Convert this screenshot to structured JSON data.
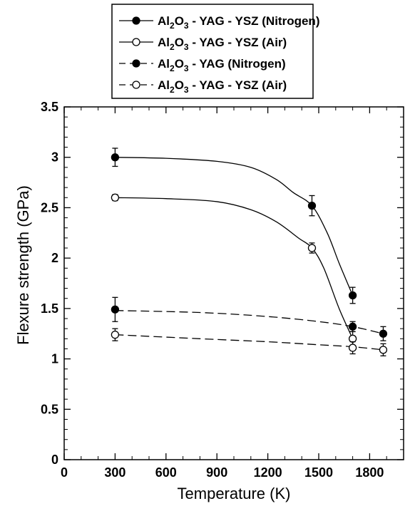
{
  "chart_data": {
    "type": "line",
    "xlabel": "Temperature (K)",
    "ylabel": "Flexure strength (GPa)",
    "xlim": [
      0,
      2000
    ],
    "ylim": [
      0,
      3.5
    ],
    "xticks": [
      "0",
      "300",
      "600",
      "900",
      "1200",
      "1500",
      "1800"
    ],
    "yticks": [
      "0",
      "0.5",
      "1",
      "1.5",
      "2",
      "2.5",
      "3",
      "3.5"
    ],
    "grid": false,
    "legend_position": "top-center",
    "series": [
      {
        "id": "s1",
        "name_parts": [
          "Al",
          "2",
          "O",
          "3",
          " - YAG - YSZ (Nitrogen)"
        ],
        "marker": "filled-circle",
        "line_style": "solid",
        "points": [
          {
            "x": 300,
            "y": 3.0,
            "err": 0.09
          },
          {
            "x": 1460,
            "y": 2.52,
            "err": 0.1
          },
          {
            "x": 1700,
            "y": 1.63,
            "err": 0.08
          }
        ],
        "curve": [
          [
            300,
            3.0
          ],
          [
            600,
            2.99
          ],
          [
            900,
            2.96
          ],
          [
            1100,
            2.9
          ],
          [
            1250,
            2.78
          ],
          [
            1350,
            2.65
          ],
          [
            1460,
            2.52
          ],
          [
            1550,
            2.25
          ],
          [
            1620,
            1.95
          ],
          [
            1700,
            1.63
          ]
        ]
      },
      {
        "id": "s2",
        "name_parts": [
          "Al",
          "2",
          "O",
          "3",
          " - YAG - YSZ (Air)"
        ],
        "marker": "open-circle",
        "line_style": "solid",
        "points": [
          {
            "x": 300,
            "y": 2.6,
            "err": 0.03
          },
          {
            "x": 1460,
            "y": 2.1,
            "err": 0.05
          },
          {
            "x": 1700,
            "y": 1.2,
            "err": 0.07
          }
        ],
        "curve": [
          [
            300,
            2.6
          ],
          [
            600,
            2.59
          ],
          [
            900,
            2.56
          ],
          [
            1100,
            2.48
          ],
          [
            1250,
            2.36
          ],
          [
            1380,
            2.2
          ],
          [
            1460,
            2.1
          ],
          [
            1530,
            1.9
          ],
          [
            1620,
            1.5
          ],
          [
            1700,
            1.2
          ]
        ]
      },
      {
        "id": "s3",
        "name_parts": [
          "Al",
          "2",
          "O",
          "3",
          " - YAG (Nitrogen)"
        ],
        "marker": "filled-circle",
        "line_style": "dashed",
        "points": [
          {
            "x": 300,
            "y": 1.49,
            "err": 0.12
          },
          {
            "x": 1700,
            "y": 1.32,
            "err": 0.05
          },
          {
            "x": 1880,
            "y": 1.25,
            "err": 0.07
          }
        ],
        "curve": [
          [
            300,
            1.48
          ],
          [
            800,
            1.46
          ],
          [
            1200,
            1.42
          ],
          [
            1500,
            1.37
          ],
          [
            1700,
            1.32
          ],
          [
            1880,
            1.25
          ]
        ]
      },
      {
        "id": "s4",
        "name_parts": [
          "Al",
          "2",
          "O",
          "3",
          " - YAG - YSZ (Air)"
        ],
        "marker": "open-circle",
        "line_style": "dashed",
        "points": [
          {
            "x": 300,
            "y": 1.24,
            "err": 0.06
          },
          {
            "x": 1700,
            "y": 1.11,
            "err": 0.06
          },
          {
            "x": 1880,
            "y": 1.09,
            "err": 0.06
          }
        ],
        "curve": [
          [
            300,
            1.24
          ],
          [
            800,
            1.2
          ],
          [
            1200,
            1.17
          ],
          [
            1500,
            1.14
          ],
          [
            1700,
            1.12
          ],
          [
            1880,
            1.09
          ]
        ]
      }
    ]
  }
}
